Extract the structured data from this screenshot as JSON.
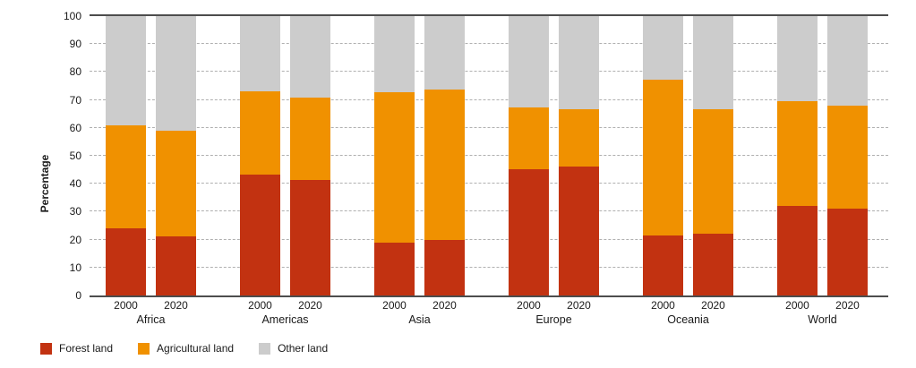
{
  "chart_data": {
    "type": "bar",
    "stacked": true,
    "title": "",
    "ylabel": "Percentage",
    "xlabel": "",
    "ylim": [
      0,
      100
    ],
    "yticks": [
      0,
      10,
      20,
      30,
      40,
      50,
      60,
      70,
      80,
      90,
      100
    ],
    "grid": "horizontal-dashed",
    "legend_position": "bottom-left",
    "categories": [
      "Africa",
      "Americas",
      "Asia",
      "Europe",
      "Oceania",
      "World"
    ],
    "sublabels": [
      "2000",
      "2020"
    ],
    "series": [
      {
        "name": "Forest land",
        "color": "#c23211",
        "values": [
          [
            23.9,
            21.3
          ],
          [
            43.3,
            41.3
          ],
          [
            18.8,
            20.0
          ],
          [
            45.3,
            46.0
          ],
          [
            21.5,
            22.2
          ],
          [
            31.9,
            31.2
          ]
        ]
      },
      {
        "name": "Agricultural land",
        "color": "#f09100",
        "values": [
          [
            36.9,
            37.7
          ],
          [
            29.9,
            29.4
          ],
          [
            54.1,
            53.8
          ],
          [
            21.9,
            20.8
          ],
          [
            55.8,
            44.6
          ],
          [
            37.6,
            36.8
          ]
        ]
      },
      {
        "name": "Other land",
        "color": "#cccccc",
        "values": [
          [
            39.2,
            41.0
          ],
          [
            26.8,
            29.3
          ],
          [
            27.1,
            26.2
          ],
          [
            32.8,
            33.2
          ],
          [
            22.7,
            33.2
          ],
          [
            30.5,
            32.0
          ]
        ]
      }
    ],
    "axis_color": "#4d4d4d",
    "gridline_color": "#b0b0b0"
  }
}
